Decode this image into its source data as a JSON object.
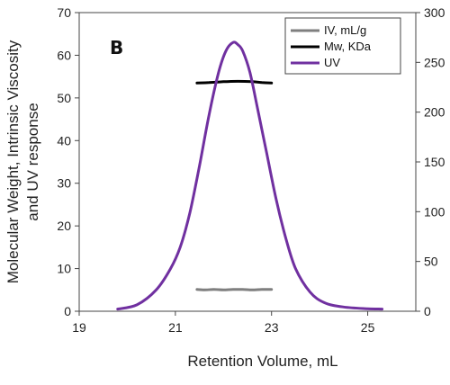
{
  "chart_data": {
    "type": "line",
    "panel_label": "B",
    "xlabel": "Retention Volume, mL",
    "ylabel_line1": "Molecular Weight, Intrinsic Viscosity",
    "ylabel_line2": "and UV response",
    "xlim": [
      19,
      26
    ],
    "ylim_left": [
      0,
      70
    ],
    "ylim_right": [
      0,
      300
    ],
    "x_ticks": [
      19,
      21,
      23,
      25
    ],
    "y_left_ticks": [
      0,
      10,
      20,
      30,
      40,
      50,
      60,
      70
    ],
    "y_right_ticks": [
      0,
      50,
      100,
      150,
      200,
      250,
      300
    ],
    "legend_position": "top-right",
    "grid": false,
    "series": [
      {
        "name": "IV, mL/g",
        "color": "#7f7f7f",
        "axis": "left",
        "x": [
          21.45,
          21.6,
          21.8,
          22.0,
          22.2,
          22.4,
          22.6,
          22.8,
          23.0
        ],
        "y": [
          5.1,
          5.0,
          5.1,
          5.0,
          5.1,
          5.1,
          5.0,
          5.1,
          5.1
        ]
      },
      {
        "name": "Mw, KDa",
        "color": "#000000",
        "axis": "left",
        "x": [
          21.45,
          21.7,
          22.0,
          22.3,
          22.6,
          22.8,
          23.0
        ],
        "y": [
          53.5,
          53.6,
          53.8,
          53.9,
          53.8,
          53.6,
          53.5
        ]
      },
      {
        "name": "UV",
        "color": "#7030a0",
        "axis": "left",
        "x": [
          19.8,
          20.2,
          20.6,
          20.9,
          21.1,
          21.3,
          21.5,
          21.7,
          21.9,
          22.05,
          22.2,
          22.3,
          22.4,
          22.55,
          22.7,
          22.9,
          23.1,
          23.3,
          23.5,
          23.8,
          24.1,
          24.5,
          25.0,
          25.3
        ],
        "y": [
          0.5,
          1.5,
          5,
          10,
          15,
          23,
          34,
          46,
          56,
          61,
          63,
          62.5,
          61,
          56,
          48,
          37,
          26,
          17,
          10,
          4.5,
          2,
          1,
          0.6,
          0.5
        ]
      }
    ]
  }
}
